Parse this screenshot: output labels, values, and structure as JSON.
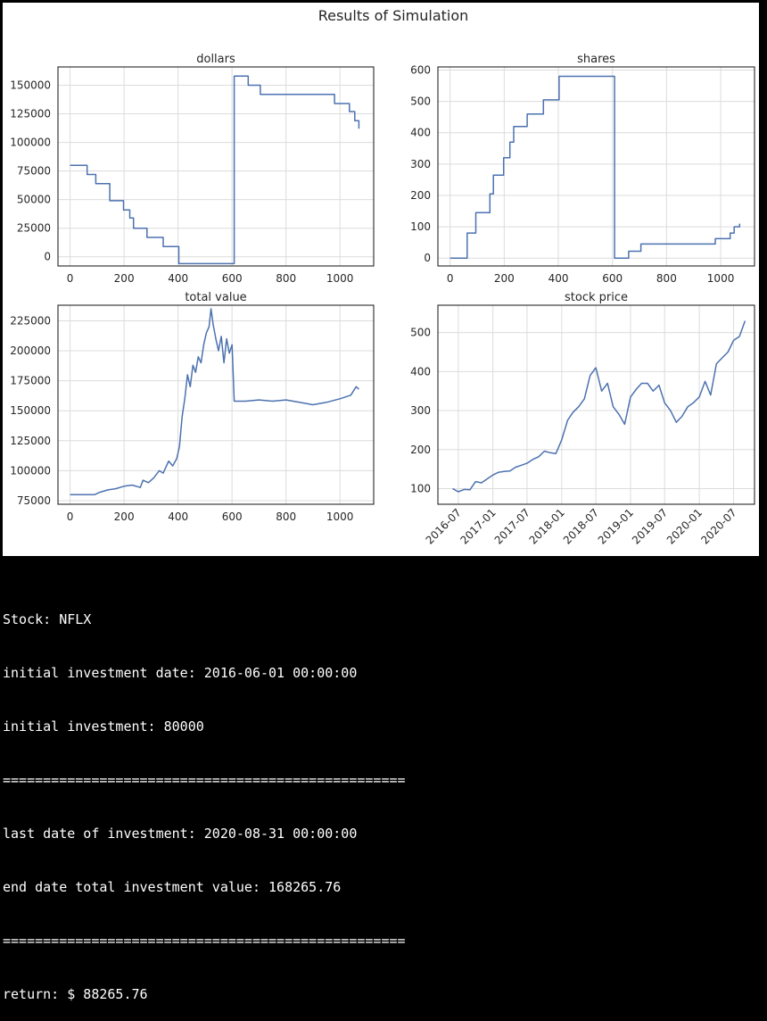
{
  "chart_data": {
    "suptitle": "Results of Simulation",
    "line_color": "#4c72b0",
    "grid": true,
    "charts": [
      {
        "id": "dollars",
        "type": "line",
        "title": "dollars",
        "xlim": [
          -45,
          1125
        ],
        "ylim": [
          -8000,
          166000
        ],
        "xticks": [
          0,
          200,
          400,
          600,
          800,
          1000
        ],
        "xtick_labels": [
          "0",
          "200",
          "400",
          "600",
          "800",
          "1000"
        ],
        "yticks": [
          0,
          25000,
          50000,
          75000,
          100000,
          125000,
          150000
        ],
        "ytick_labels": [
          "0",
          "25000",
          "50000",
          "75000",
          "100000",
          "125000",
          "150000"
        ],
        "series": [
          {
            "step": true,
            "x": [
              0,
              63,
              95,
              147,
              198,
              221,
              235,
              285,
              345,
              403,
              608,
              660,
              705,
              790,
              980,
              1035,
              1055,
              1070
            ],
            "y": [
              80000,
              72000,
              64000,
              49000,
              41000,
              34000,
              25000,
              17000,
              9000,
              -6000,
              158000,
              150000,
              142000,
              142000,
              134000,
              127000,
              119000,
              112000
            ]
          }
        ]
      },
      {
        "id": "shares",
        "type": "line",
        "title": "shares",
        "xlim": [
          -45,
          1125
        ],
        "ylim": [
          -25,
          610
        ],
        "xticks": [
          0,
          200,
          400,
          600,
          800,
          1000
        ],
        "xtick_labels": [
          "0",
          "200",
          "400",
          "600",
          "800",
          "1000"
        ],
        "yticks": [
          0,
          100,
          200,
          300,
          400,
          500,
          600
        ],
        "ytick_labels": [
          "0",
          "100",
          "200",
          "300",
          "400",
          "500",
          "600"
        ],
        "series": [
          {
            "step": true,
            "x": [
              0,
              63,
              95,
              147,
              160,
              198,
              221,
              235,
              285,
              345,
              403,
              608,
              660,
              705,
              980,
              1035,
              1050,
              1070
            ],
            "y": [
              0,
              80,
              145,
              205,
              265,
              320,
              370,
              420,
              460,
              505,
              580,
              0,
              22,
              45,
              62,
              80,
              100,
              110
            ]
          }
        ]
      },
      {
        "id": "total_value",
        "type": "line",
        "title": "total value",
        "xlim": [
          -45,
          1125
        ],
        "ylim": [
          72000,
          238000
        ],
        "xticks": [
          0,
          200,
          400,
          600,
          800,
          1000
        ],
        "xtick_labels": [
          "0",
          "200",
          "400",
          "600",
          "800",
          "1000"
        ],
        "yticks": [
          75000,
          100000,
          125000,
          150000,
          175000,
          200000,
          225000
        ],
        "ytick_labels": [
          "75000",
          "100000",
          "125000",
          "150000",
          "175000",
          "200000",
          "225000"
        ],
        "series": [
          {
            "step": false,
            "x": [
              0,
              50,
              90,
              110,
              140,
              170,
              200,
              230,
              260,
              270,
              290,
              310,
              330,
              345,
              365,
              380,
              395,
              405,
              415,
              425,
              435,
              445,
              455,
              465,
              475,
              485,
              495,
              505,
              515,
              522,
              530,
              540,
              550,
              560,
              570,
              580,
              590,
              600,
              608,
              620,
              650,
              700,
              750,
              800,
              850,
              900,
              950,
              1000,
              1040,
              1060,
              1070
            ],
            "y": [
              80000,
              80000,
              80000,
              82000,
              84000,
              85000,
              87000,
              88000,
              86000,
              92000,
              90000,
              94000,
              100000,
              98000,
              108000,
              104000,
              110000,
              120000,
              145000,
              160000,
              180000,
              170000,
              188000,
              182000,
              195000,
              190000,
              205000,
              215000,
              220000,
              235000,
              222000,
              210000,
              200000,
              212000,
              190000,
              210000,
              198000,
              205000,
              158000,
              158000,
              158000,
              159000,
              158000,
              159000,
              157000,
              155000,
              157000,
              160000,
              163000,
              170000,
              168000
            ]
          }
        ]
      },
      {
        "id": "stock_price",
        "type": "line",
        "title": "stock price",
        "xaxis_type": "date",
        "x_domain": [
          "2016-03-15",
          "2020-10-20"
        ],
        "ylim": [
          60,
          570
        ],
        "yticks": [
          100,
          200,
          300,
          400,
          500
        ],
        "ytick_labels": [
          "100",
          "200",
          "300",
          "400",
          "500"
        ],
        "xticks": [
          "2016-07-01",
          "2017-01-01",
          "2017-07-01",
          "2018-01-01",
          "2018-07-01",
          "2019-01-01",
          "2019-07-01",
          "2020-01-01",
          "2020-07-01"
        ],
        "xtick_labels": [
          "2016-07",
          "2017-01",
          "2017-07",
          "2018-01",
          "2018-07",
          "2019-01",
          "2019-07",
          "2020-01",
          "2020-07"
        ],
        "series": [
          {
            "step": false,
            "x": [
              "2016-06-01",
              "2016-07-01",
              "2016-08-01",
              "2016-09-01",
              "2016-10-01",
              "2016-11-01",
              "2016-12-01",
              "2017-01-01",
              "2017-02-01",
              "2017-03-01",
              "2017-04-01",
              "2017-05-01",
              "2017-06-01",
              "2017-07-01",
              "2017-08-01",
              "2017-09-01",
              "2017-10-01",
              "2017-11-01",
              "2017-12-01",
              "2018-01-01",
              "2018-02-01",
              "2018-03-01",
              "2018-04-01",
              "2018-05-01",
              "2018-06-01",
              "2018-07-01",
              "2018-08-01",
              "2018-09-01",
              "2018-10-01",
              "2018-11-01",
              "2018-12-01",
              "2019-01-01",
              "2019-02-01",
              "2019-03-01",
              "2019-04-01",
              "2019-05-01",
              "2019-06-01",
              "2019-07-01",
              "2019-08-01",
              "2019-09-01",
              "2019-10-01",
              "2019-11-01",
              "2019-12-01",
              "2020-01-01",
              "2020-02-01",
              "2020-03-01",
              "2020-04-01",
              "2020-05-01",
              "2020-06-01",
              "2020-07-01",
              "2020-08-01",
              "2020-08-31"
            ],
            "y": [
              100,
              92,
              98,
              97,
              118,
              115,
              125,
              135,
              142,
              144,
              145,
              155,
              160,
              165,
              175,
              182,
              196,
              192,
              190,
              225,
              275,
              295,
              310,
              330,
              390,
              410,
              350,
              370,
              310,
              290,
              265,
              335,
              355,
              370,
              370,
              350,
              365,
              320,
              300,
              270,
              285,
              310,
              320,
              335,
              375,
              340,
              420,
              435,
              450,
              480,
              490,
              530
            ]
          }
        ]
      }
    ]
  },
  "console": {
    "lines": [
      "Stock: NFLX",
      "initial investment date: 2016-06-01 00:00:00",
      "initial investment: 80000",
      "==================================================",
      "last date of investment: 2020-08-31 00:00:00",
      "end date total investment value: 168265.76",
      "==================================================",
      "return: $ 88265.76"
    ]
  }
}
